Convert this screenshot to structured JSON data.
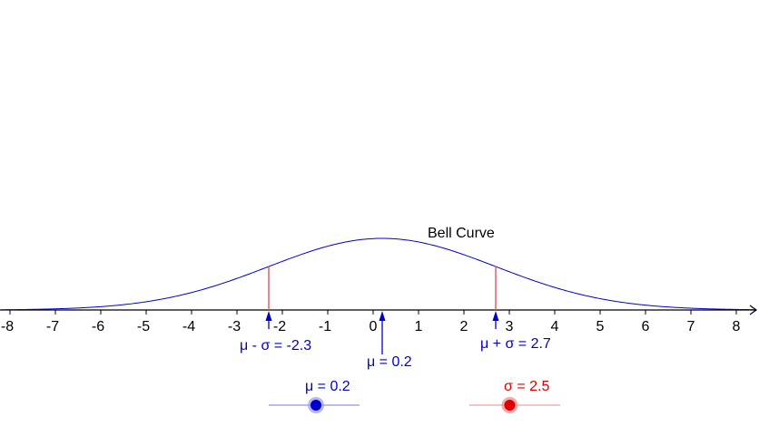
{
  "graph": {
    "curve_label": "Bell Curve",
    "mu_minus_sigma_label": "μ - σ  = -2.3",
    "mu_label": "μ = 0.2",
    "mu_plus_sigma_label": "μ + σ  = 2.7"
  },
  "sliders": {
    "mu": {
      "label": "μ = 0.2",
      "value": 0.2,
      "min": -5,
      "max": 5,
      "color": "#0000cc"
    },
    "sigma": {
      "label": "σ = 2.5",
      "value": 2.5,
      "min": 0.5,
      "max": 5,
      "color": "#dd0000"
    }
  },
  "chart_data": {
    "type": "line",
    "title": "",
    "xlabel": "",
    "ylabel": "",
    "xlim": [
      -8.2,
      8.4
    ],
    "x_ticks": [
      "-8",
      "-7",
      "-6",
      "-5",
      "-4",
      "-3",
      "-2",
      "-1",
      "0",
      "1",
      "2",
      "3",
      "4",
      "5",
      "6",
      "7",
      "8"
    ],
    "series": [
      {
        "name": "Bell Curve",
        "function": "normal_pdf",
        "mu": 0.2,
        "sigma": 2.5,
        "color": "#0000cc"
      }
    ],
    "markers": [
      {
        "x": -2.3,
        "label": "μ - σ  = -2.3",
        "color": "#0000cc"
      },
      {
        "x": 0.2,
        "label": "μ = 0.2",
        "color": "#0000cc"
      },
      {
        "x": 2.7,
        "label": "μ + σ  = 2.7",
        "color": "#0000cc"
      }
    ],
    "sigma_lines": {
      "color": "#e06060"
    },
    "grid": false
  }
}
